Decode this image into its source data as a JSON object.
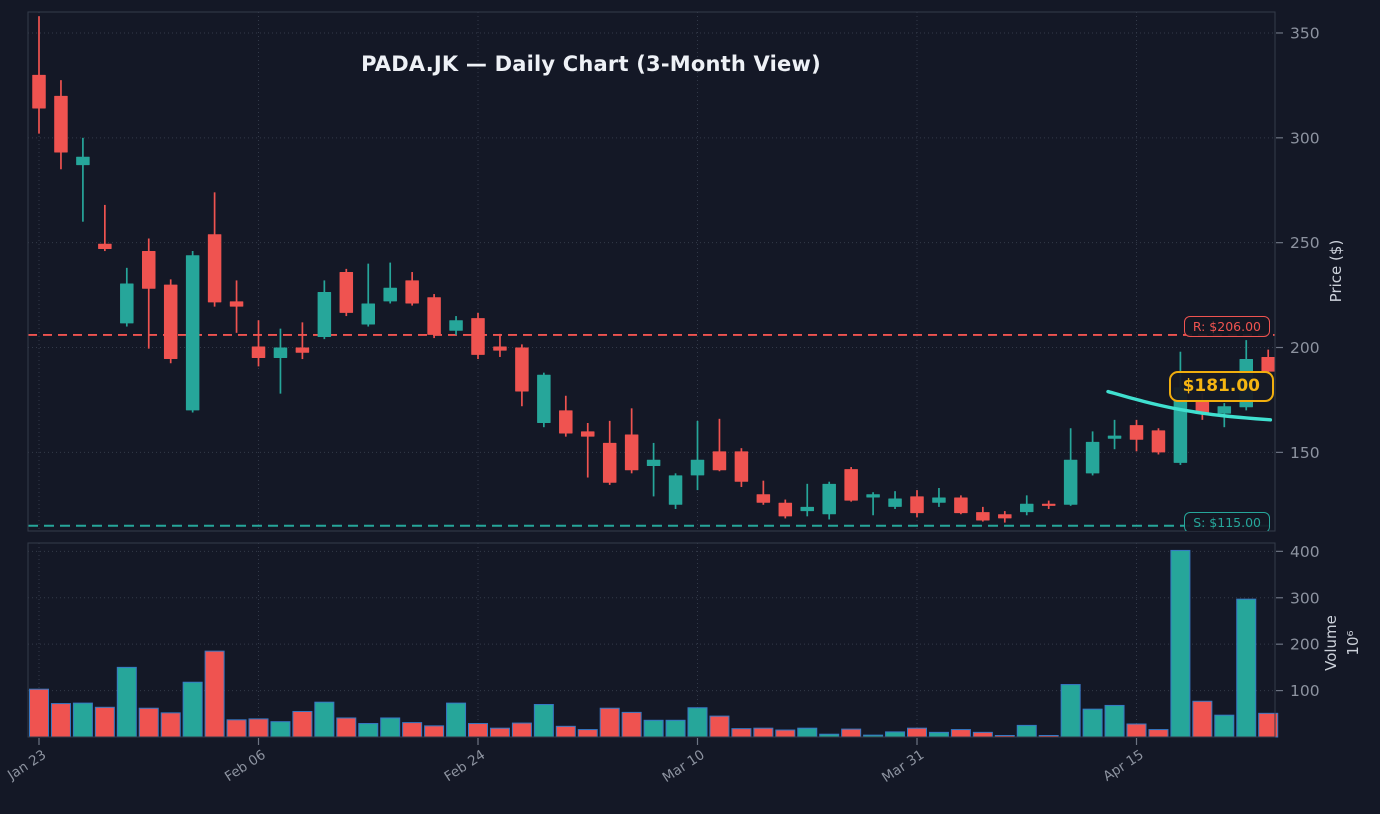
{
  "title": "PADA.JK — Daily Chart (3-Month View)",
  "price_axis": {
    "label": "Price ($)",
    "ticks": [
      150,
      200,
      250,
      300,
      350
    ],
    "ylim": [
      112.5,
      360
    ]
  },
  "volume_axis": {
    "label": "Volume",
    "scale": "10⁶",
    "ticks": [
      100,
      200,
      300,
      400
    ],
    "ylim": [
      0,
      418
    ]
  },
  "x_axis": {
    "tick_indices": [
      0,
      10,
      20,
      30,
      40,
      50
    ],
    "tick_labels": [
      "Jan 23",
      "Feb 06",
      "Feb 24",
      "Mar 10",
      "Mar 31",
      "Apr 15"
    ]
  },
  "annotations": {
    "resistance": {
      "label": "R: $206.00",
      "price": 206,
      "color": "#ef5350"
    },
    "support": {
      "label": "S: $115.00",
      "price": 115,
      "color": "#26a69a"
    },
    "price_tag": {
      "label": "$181.00",
      "price": 181,
      "color": "#f6b511"
    }
  },
  "colors": {
    "background": "#141826",
    "up": "#26a69a",
    "down": "#ef5350",
    "grid": "#333a49",
    "spine": "#343b4a",
    "tick_text": "#8d93a0",
    "axis_text": "#ccd1da",
    "title_text": "#eef1f6",
    "volume_edge": "#3779c5",
    "ma": "#40e0d0",
    "gold": "#f6b511",
    "resistance": "#ef5350",
    "support": "#26a69a"
  },
  "chart_data": {
    "type": "candlestick",
    "symbol": "PADA.JK",
    "timeframe": "Daily, 3-Month View",
    "n_bars": 57,
    "x_tick_indices": [
      0,
      10,
      20,
      30,
      40,
      50
    ],
    "x_tick_labels": [
      "Jan 23",
      "Feb 06",
      "Feb 24",
      "Mar 10",
      "Mar 31",
      "Apr 15"
    ],
    "price_ylim": [
      112.5,
      360
    ],
    "volume_ylim": [
      0,
      418
    ],
    "open": [
      330,
      320,
      287,
      249.5,
      211.5,
      246,
      230,
      170,
      254,
      222,
      200.5,
      195,
      200,
      205,
      236,
      211,
      222,
      232,
      224,
      208,
      214,
      200.5,
      200,
      164,
      170,
      160,
      154.5,
      158.5,
      143.5,
      125,
      139,
      150.5,
      150.5,
      130,
      126,
      122,
      120.5,
      142,
      128.5,
      124,
      129,
      126,
      128.5,
      121.5,
      120.5,
      121.5,
      125.5,
      125,
      140,
      156.5,
      163,
      160.5,
      145,
      175,
      168.5,
      171.5,
      195.5
    ],
    "high": [
      358,
      327.5,
      300,
      268,
      238,
      252,
      232.5,
      246,
      274,
      232,
      213,
      209,
      212,
      232,
      237.5,
      240,
      240.5,
      236,
      225.5,
      215,
      216.5,
      206.5,
      201.5,
      188,
      177,
      164,
      165,
      171,
      154.5,
      140,
      165,
      166,
      152,
      136.5,
      127.5,
      135,
      136,
      143,
      131,
      131.5,
      132,
      133,
      129.5,
      124,
      122,
      129.5,
      127,
      161.5,
      160,
      165.5,
      165.5,
      161.5,
      198,
      178.5,
      173.5,
      203.5,
      199
    ],
    "low": [
      302,
      285,
      260,
      246,
      210,
      199.5,
      192.5,
      169,
      219.5,
      207,
      191,
      178,
      194.5,
      204,
      215,
      210,
      221,
      220,
      204.5,
      206,
      194.5,
      195.5,
      172,
      162,
      157.5,
      138,
      134.5,
      140,
      129,
      123,
      132,
      141,
      133.5,
      125,
      118.5,
      119.5,
      118,
      126.5,
      120,
      123,
      119,
      124,
      120.5,
      117,
      116.5,
      120,
      123,
      124.5,
      139,
      151.5,
      150.5,
      149,
      144,
      165.5,
      162,
      170,
      186.5
    ],
    "close": [
      314,
      293,
      291,
      247,
      230.5,
      228,
      194.5,
      244,
      221.5,
      219.5,
      195,
      200,
      197.5,
      226.5,
      216.5,
      221,
      228.5,
      221,
      206,
      213,
      196.5,
      198.5,
      179,
      187,
      159,
      157.5,
      135.5,
      141.5,
      146.5,
      139,
      146.5,
      141.5,
      136,
      126,
      119.5,
      124,
      135,
      127,
      130,
      128,
      121,
      128.5,
      121,
      117.5,
      118.5,
      125.5,
      124.5,
      146.5,
      155,
      158,
      156,
      150,
      181,
      168.5,
      172,
      194.5,
      188.5
    ],
    "volume_millions": [
      103,
      72,
      73,
      64,
      150,
      62,
      52,
      118,
      185,
      37,
      39,
      33,
      55,
      75,
      41,
      29,
      41,
      31,
      24,
      73,
      29,
      19,
      30,
      70,
      23,
      16,
      62,
      53,
      36,
      36,
      63,
      45,
      18,
      19,
      15,
      19,
      6,
      17,
      4,
      11,
      19,
      10,
      16,
      10,
      3,
      25,
      2,
      113,
      60,
      68,
      28,
      16,
      402,
      77,
      47,
      297,
      51
    ],
    "overlays": {
      "resistance_line_price": 206,
      "support_line_price": 115,
      "ma_curve": {
        "color": "#40e0d0",
        "points_index_price": [
          [
            48.7,
            179.0
          ],
          [
            50,
            175.2
          ],
          [
            51,
            172.6
          ],
          [
            52,
            170.4
          ],
          [
            53,
            168.7
          ],
          [
            54,
            167.4
          ],
          [
            55,
            166.4
          ],
          [
            56.1,
            165.5
          ]
        ]
      }
    }
  }
}
